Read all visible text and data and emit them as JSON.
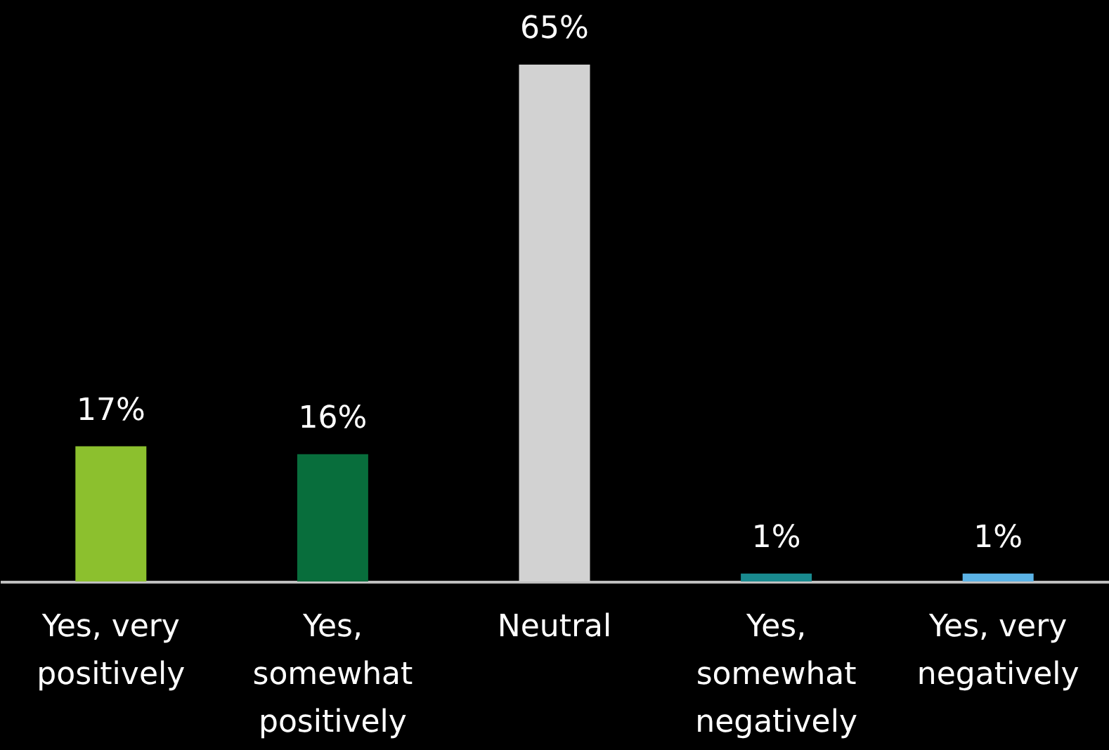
{
  "chart_data": {
    "type": "bar",
    "categories": [
      "Yes, very positively",
      "Yes, somewhat positively",
      "Neutral",
      "Yes, somewhat negatively",
      "Yes, very negatively"
    ],
    "values": [
      17,
      16,
      65,
      1,
      1
    ],
    "colors": [
      "#8cc02e",
      "#086e3c",
      "#d2d2d2",
      "#198a8f",
      "#5bb3e6"
    ],
    "value_labels": [
      "17%",
      "16%",
      "65%",
      "1%",
      "1%"
    ],
    "grid": false,
    "legend": false
  }
}
